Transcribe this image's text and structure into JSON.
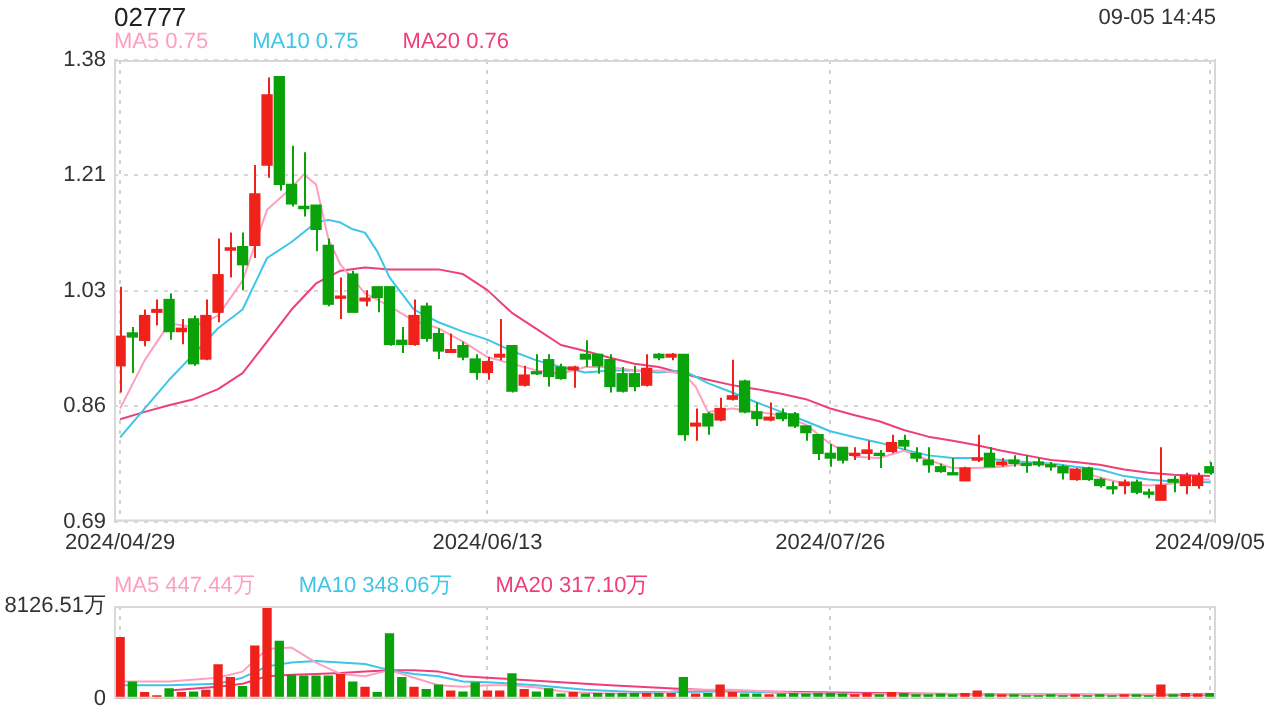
{
  "chart_data": [
    {
      "type": "candlestick",
      "title": "02777",
      "annotations": [
        "09-05 14:45"
      ],
      "legend": "top left",
      "grid": true,
      "categories": [
        "2024/04/29",
        null,
        null,
        null,
        null,
        null,
        null,
        null,
        null,
        null,
        null,
        null,
        null,
        null,
        null,
        null,
        null,
        null,
        null,
        null,
        null,
        null,
        null,
        null,
        null,
        null,
        null,
        null,
        null,
        null,
        "2024/06/13",
        null,
        null,
        null,
        null,
        null,
        null,
        null,
        null,
        null,
        null,
        null,
        null,
        null,
        null,
        null,
        null,
        null,
        null,
        null,
        null,
        null,
        null,
        null,
        null,
        null,
        null,
        null,
        "2024/07/26",
        null,
        null,
        null,
        null,
        null,
        null,
        null,
        null,
        null,
        null,
        null,
        null,
        null,
        null,
        null,
        null,
        null,
        null,
        null,
        null,
        null,
        null,
        null,
        null,
        null,
        null,
        null,
        null,
        null,
        null,
        "2024/09/05"
      ],
      "ylim": [
        0.69,
        1.38
      ],
      "yticks": [
        {
          "value": 0.69,
          "label": "0.69"
        },
        {
          "value": 0.8625,
          "label": "0.86"
        },
        {
          "value": 1.035,
          "label": "1.03"
        },
        {
          "value": 1.2075,
          "label": "1.21"
        },
        {
          "value": 1.38,
          "label": "1.38"
        }
      ],
      "ohlc": [
        [
          0.923,
          1.041,
          0.883,
          0.967
        ],
        [
          0.972,
          0.981,
          0.912,
          0.966
        ],
        [
          0.961,
          1.007,
          0.952,
          0.998
        ],
        [
          1.003,
          1.022,
          0.983,
          1.007
        ],
        [
          1.022,
          1.031,
          0.962,
          0.974
        ],
        [
          0.974,
          0.993,
          0.955,
          0.979
        ],
        [
          0.993,
          0.998,
          0.923,
          0.926
        ],
        [
          0.933,
          1.022,
          0.931,
          0.998
        ],
        [
          1.003,
          1.113,
          0.988,
          1.059
        ],
        [
          1.096,
          1.122,
          1.055,
          1.098
        ],
        [
          1.101,
          1.122,
          1.036,
          1.074
        ],
        [
          1.103,
          1.223,
          1.084,
          1.18
        ],
        [
          1.223,
          1.354,
          1.204,
          1.328
        ],
        [
          1.355,
          1.355,
          1.185,
          1.194
        ],
        [
          1.194,
          1.252,
          1.161,
          1.165
        ],
        [
          1.161,
          1.242,
          1.146,
          1.158
        ],
        [
          1.163,
          1.163,
          1.094,
          1.127
        ],
        [
          1.103,
          1.113,
          1.012,
          1.015
        ],
        [
          1.024,
          1.055,
          0.993,
          1.027
        ],
        [
          1.06,
          1.065,
          1.003,
          1.003
        ],
        [
          1.02,
          1.036,
          1.012,
          1.024
        ],
        [
          1.041,
          1.041,
          1.003,
          1.025
        ],
        [
          1.041,
          1.041,
          0.953,
          0.955
        ],
        [
          0.961,
          0.981,
          0.942,
          0.955
        ],
        [
          0.955,
          1.022,
          0.953,
          0.998
        ],
        [
          1.012,
          1.017,
          0.959,
          0.964
        ],
        [
          0.971,
          0.979,
          0.933,
          0.945
        ],
        [
          0.943,
          0.971,
          0.942,
          0.947
        ],
        [
          0.953,
          0.959,
          0.931,
          0.936
        ],
        [
          0.933,
          0.94,
          0.902,
          0.913
        ],
        [
          0.913,
          0.936,
          0.902,
          0.929
        ],
        [
          0.936,
          0.993,
          0.931,
          0.94
        ],
        [
          0.953,
          0.953,
          0.883,
          0.885
        ],
        [
          0.894,
          0.923,
          0.892,
          0.909
        ],
        [
          0.913,
          0.94,
          0.909,
          0.911
        ],
        [
          0.932,
          0.94,
          0.892,
          0.907
        ],
        [
          0.921,
          0.926,
          0.902,
          0.904
        ],
        [
          0.917,
          0.923,
          0.89,
          0.921
        ],
        [
          0.94,
          0.961,
          0.921,
          0.933
        ],
        [
          0.94,
          0.94,
          0.911,
          0.923
        ],
        [
          0.932,
          0.94,
          0.883,
          0.892
        ],
        [
          0.911,
          0.921,
          0.883,
          0.885
        ],
        [
          0.911,
          0.923,
          0.885,
          0.892
        ],
        [
          0.894,
          0.94,
          0.892,
          0.919
        ],
        [
          0.94,
          0.942,
          0.931,
          0.935
        ],
        [
          0.936,
          0.942,
          0.931,
          0.94
        ],
        [
          0.94,
          0.94,
          0.811,
          0.82
        ],
        [
          0.833,
          0.859,
          0.811,
          0.837
        ],
        [
          0.851,
          0.854,
          0.82,
          0.833
        ],
        [
          0.842,
          0.875,
          0.84,
          0.859
        ],
        [
          0.873,
          0.932,
          0.871,
          0.878
        ],
        [
          0.9,
          0.902,
          0.852,
          0.854
        ],
        [
          0.854,
          0.868,
          0.833,
          0.844
        ],
        [
          0.842,
          0.868,
          0.84,
          0.846
        ],
        [
          0.852,
          0.859,
          0.84,
          0.844
        ],
        [
          0.851,
          0.854,
          0.83,
          0.833
        ],
        [
          0.833,
          0.833,
          0.811,
          0.823
        ],
        [
          0.82,
          0.82,
          0.782,
          0.792
        ],
        [
          0.792,
          0.806,
          0.772,
          0.785
        ],
        [
          0.801,
          0.801,
          0.777,
          0.782
        ],
        [
          0.789,
          0.801,
          0.782,
          0.792
        ],
        [
          0.792,
          0.811,
          0.782,
          0.797
        ],
        [
          0.792,
          0.797,
          0.77,
          0.789
        ],
        [
          0.795,
          0.82,
          0.792,
          0.808
        ],
        [
          0.811,
          0.82,
          0.797,
          0.803
        ],
        [
          0.792,
          0.801,
          0.779,
          0.785
        ],
        [
          0.782,
          0.801,
          0.763,
          0.775
        ],
        [
          0.772,
          0.777,
          0.763,
          0.765
        ],
        [
          0.763,
          0.785,
          0.76,
          0.76
        ],
        [
          0.751,
          0.772,
          0.751,
          0.77
        ],
        [
          0.782,
          0.82,
          0.779,
          0.785
        ],
        [
          0.792,
          0.801,
          0.772,
          0.772
        ],
        [
          0.775,
          0.785,
          0.772,
          0.779
        ],
        [
          0.782,
          0.789,
          0.772,
          0.777
        ],
        [
          0.777,
          0.789,
          0.763,
          0.774
        ],
        [
          0.779,
          0.785,
          0.772,
          0.775
        ],
        [
          0.775,
          0.779,
          0.766,
          0.772
        ],
        [
          0.772,
          0.775,
          0.753,
          0.763
        ],
        [
          0.753,
          0.77,
          0.751,
          0.768
        ],
        [
          0.77,
          0.772,
          0.751,
          0.753
        ],
        [
          0.753,
          0.756,
          0.741,
          0.744
        ],
        [
          0.741,
          0.75,
          0.731,
          0.739
        ],
        [
          0.744,
          0.753,
          0.731,
          0.749
        ],
        [
          0.749,
          0.753,
          0.731,
          0.734
        ],
        [
          0.734,
          0.739,
          0.725,
          0.731
        ],
        [
          0.722,
          0.801,
          0.722,
          0.744
        ],
        [
          0.753,
          0.758,
          0.734,
          0.749
        ],
        [
          0.744,
          0.763,
          0.731,
          0.758
        ],
        [
          0.744,
          0.763,
          0.739,
          0.758
        ],
        [
          0.772,
          0.779,
          0.76,
          0.763
        ]
      ],
      "colors": [
        "#f0201a",
        "#0aa20a",
        "#f0201a",
        "#f0201a",
        "#0aa20a",
        "#f0201a",
        "#0aa20a",
        "#f0201a",
        "#f0201a",
        "#f0201a",
        "#0aa20a",
        "#f0201a",
        "#f0201a",
        "#0aa20a",
        "#0aa20a",
        "#0aa20a",
        "#0aa20a",
        "#0aa20a",
        "#f0201a",
        "#0aa20a",
        "#f0201a",
        "#0aa20a",
        "#0aa20a",
        "#0aa20a",
        "#f0201a",
        "#0aa20a",
        "#0aa20a",
        "#f0201a",
        "#0aa20a",
        "#0aa20a",
        "#f0201a",
        "#f0201a",
        "#0aa20a",
        "#f0201a",
        "#0aa20a",
        "#0aa20a",
        "#0aa20a",
        "#f0201a",
        "#0aa20a",
        "#0aa20a",
        "#0aa20a",
        "#0aa20a",
        "#0aa20a",
        "#f0201a",
        "#0aa20a",
        "#f0201a",
        "#0aa20a",
        "#f0201a",
        "#0aa20a",
        "#f0201a",
        "#f0201a",
        "#0aa20a",
        "#0aa20a",
        "#f0201a",
        "#0aa20a",
        "#0aa20a",
        "#0aa20a",
        "#0aa20a",
        "#0aa20a",
        "#0aa20a",
        "#f0201a",
        "#f0201a",
        "#0aa20a",
        "#f0201a",
        "#0aa20a",
        "#0aa20a",
        "#0aa20a",
        "#0aa20a",
        "#0aa20a",
        "#f0201a",
        "#f0201a",
        "#0aa20a",
        "#f0201a",
        "#0aa20a",
        "#0aa20a",
        "#0aa20a",
        "#0aa20a",
        "#0aa20a",
        "#f0201a",
        "#0aa20a",
        "#0aa20a",
        "#0aa20a",
        "#f0201a",
        "#0aa20a",
        "#0aa20a",
        "#f0201a",
        "#0aa20a",
        "#f0201a",
        "#f0201a",
        "#0aa20a"
      ],
      "series": [
        {
          "type": "line",
          "name": "MA5 0.75",
          "color": "#ff9fbf",
          "values": [
            0.859,
            null,
            0.931,
            null,
            0.986,
            null,
            0.981,
            null,
            0.998,
            null,
            1.05,
            null,
            1.156,
            null,
            1.189,
            1.209,
            1.194,
            1.113,
            1.074,
            null,
            1.031,
            null,
            1.012,
            null,
            0.99,
            null,
            0.979,
            null,
            0.959,
            null,
            0.936,
            null,
            0.926,
            null,
            0.916,
            null,
            0.911,
            null,
            0.921,
            null,
            0.921,
            null,
            0.916,
            null,
            0.916,
            null,
            0.911,
            0.892,
            0.854,
            null,
            0.859,
            null,
            0.854,
            null,
            0.849,
            null,
            0.835,
            null,
            0.806,
            null,
            0.787,
            null,
            0.785,
            null,
            0.796,
            null,
            0.782,
            null,
            0.77,
            null,
            0.77,
            null,
            0.772,
            null,
            0.777,
            null,
            0.775,
            null,
            0.768,
            null,
            0.756,
            null,
            0.747,
            null,
            0.744,
            null,
            0.747,
            null,
            0.753,
            0.753
          ]
        },
        {
          "type": "line",
          "name": "MA10 0.75",
          "color": "#3ec6e8",
          "values": [
            0.816,
            null,
            0.859,
            null,
            0.902,
            null,
            0.94,
            null,
            0.979,
            null,
            1.007,
            null,
            1.084,
            null,
            1.108,
            null,
            1.137,
            1.141,
            1.137,
            1.127,
            1.122,
            1.094,
            1.055,
            null,
            1.007,
            null,
            0.988,
            null,
            0.974,
            null,
            0.962,
            null,
            0.945,
            null,
            0.931,
            null,
            0.921,
            null,
            0.913,
            null,
            0.916,
            null,
            0.916,
            null,
            0.913,
            null,
            0.916,
            null,
            0.897,
            null,
            0.883,
            null,
            0.868,
            null,
            0.854,
            null,
            0.84,
            null,
            0.825,
            null,
            0.816,
            null,
            0.808,
            null,
            0.798,
            null,
            0.789,
            null,
            0.785,
            null,
            0.785,
            null,
            0.782,
            null,
            0.779,
            null,
            0.777,
            null,
            0.772,
            null,
            0.768,
            null,
            0.758,
            null,
            0.753,
            null,
            0.75,
            null,
            null,
            0.749
          ]
        },
        {
          "type": "line",
          "name": "MA20 0.76",
          "color": "#ee3f7a",
          "values": [
            0.843,
            null,
            0.854,
            null,
            0.864,
            null,
            0.873,
            null,
            0.888,
            null,
            0.912,
            null,
            0.959,
            null,
            1.007,
            null,
            1.046,
            null,
            1.065,
            null,
            1.07,
            null,
            1.067,
            null,
            1.067,
            null,
            1.067,
            null,
            1.06,
            null,
            1.036,
            null,
            1.002,
            null,
            0.978,
            null,
            0.954,
            null,
            0.945,
            null,
            0.935,
            null,
            0.926,
            null,
            0.921,
            null,
            0.911,
            null,
            0.902,
            null,
            0.894,
            null,
            0.888,
            null,
            0.881,
            null,
            0.873,
            null,
            0.859,
            null,
            0.849,
            null,
            0.84,
            null,
            0.827,
            null,
            0.817,
            null,
            0.811,
            null,
            0.804,
            null,
            0.796,
            null,
            0.789,
            null,
            0.782,
            null,
            0.779,
            null,
            0.775,
            null,
            0.768,
            null,
            0.763,
            null,
            0.76,
            null,
            null,
            0.758
          ]
        }
      ]
    },
    {
      "type": "bar",
      "legend": "top left",
      "grid": "x",
      "tick_labels": "y",
      "categories": [
        "2024/04/29",
        null,
        null,
        null,
        null,
        null,
        null,
        null,
        null,
        null,
        null,
        null,
        null,
        null,
        null,
        null,
        null,
        null,
        null,
        null,
        null,
        null,
        null,
        null,
        null,
        null,
        null,
        null,
        null,
        null,
        "2024/06/13",
        null,
        null,
        null,
        null,
        null,
        null,
        null,
        null,
        null,
        null,
        null,
        null,
        null,
        null,
        null,
        null,
        null,
        null,
        null,
        null,
        null,
        null,
        null,
        null,
        null,
        null,
        null,
        "2024/07/26",
        null,
        null,
        null,
        null,
        null,
        null,
        null,
        null,
        null,
        null,
        null,
        null,
        null,
        null,
        null,
        null,
        null,
        null,
        null,
        null,
        null,
        null,
        null,
        null,
        null,
        null,
        null,
        null,
        null,
        null,
        "2024/09/05"
      ],
      "ylim": [
        0,
        8126.51
      ],
      "yticks": [
        0,
        {
          "value": 8126.51,
          "label": "8126.51万"
        }
      ],
      "series": [
        {
          "colors": [
            "#f0201a",
            "#0aa20a",
            "#f0201a",
            "#f0201a",
            "#0aa20a",
            "#f0201a",
            "#0aa20a",
            "#f0201a",
            "#f0201a",
            "#f0201a",
            "#0aa20a",
            "#f0201a",
            "#f0201a",
            "#0aa20a",
            "#0aa20a",
            "#0aa20a",
            "#0aa20a",
            "#0aa20a",
            "#f0201a",
            "#0aa20a",
            "#f0201a",
            "#0aa20a",
            "#0aa20a",
            "#0aa20a",
            "#f0201a",
            "#0aa20a",
            "#0aa20a",
            "#f0201a",
            "#0aa20a",
            "#0aa20a",
            "#f0201a",
            "#f0201a",
            "#0aa20a",
            "#f0201a",
            "#0aa20a",
            "#0aa20a",
            "#0aa20a",
            "#f0201a",
            "#0aa20a",
            "#0aa20a",
            "#0aa20a",
            "#0aa20a",
            "#0aa20a",
            "#f0201a",
            "#0aa20a",
            "#f0201a",
            "#0aa20a",
            "#f0201a",
            "#0aa20a",
            "#f0201a",
            "#f0201a",
            "#0aa20a",
            "#0aa20a",
            "#f0201a",
            "#0aa20a",
            "#0aa20a",
            "#0aa20a",
            "#0aa20a",
            "#0aa20a",
            "#0aa20a",
            "#f0201a",
            "#f0201a",
            "#0aa20a",
            "#f0201a",
            "#0aa20a",
            "#0aa20a",
            "#0aa20a",
            "#0aa20a",
            "#0aa20a",
            "#f0201a",
            "#f0201a",
            "#0aa20a",
            "#f0201a",
            "#0aa20a",
            "#0aa20a",
            "#0aa20a",
            "#0aa20a",
            "#0aa20a",
            "#f0201a",
            "#0aa20a",
            "#0aa20a",
            "#0aa20a",
            "#f0201a",
            "#0aa20a",
            "#0aa20a",
            "#f0201a",
            "#0aa20a",
            "#f0201a",
            "#f0201a",
            "#0aa20a"
          ],
          "values": [
            5350,
            1450,
            530,
            260,
            860,
            530,
            590,
            730,
            2970,
            1850,
            1060,
            4620,
            8126.51,
            5020,
            2050,
            1980,
            1980,
            1980,
            2110,
            1450,
            990,
            530,
            5680,
            1850,
            990,
            790,
            1190,
            660,
            590,
            1390,
            660,
            660,
            2180,
            790,
            590,
            860,
            400,
            530,
            400,
            460,
            460,
            460,
            460,
            460,
            460,
            460,
            1850,
            400,
            460,
            1190,
            530,
            400,
            400,
            330,
            400,
            460,
            400,
            460,
            460,
            400,
            330,
            460,
            330,
            530,
            460,
            330,
            330,
            400,
            330,
            460,
            660,
            400,
            330,
            330,
            260,
            260,
            330,
            260,
            330,
            260,
            330,
            260,
            330,
            330,
            260,
            1190,
            330,
            460,
            400,
            460
          ]
        },
        {
          "type": "line",
          "name": "MA5 447.44万",
          "color": "#ff9fbf",
          "values": [
            1520,
            null,
            null,
            null,
            1520,
            null,
            null,
            null,
            1850,
            null,
            2380,
            null,
            4360,
            null,
            4490,
            null,
            3170,
            null,
            2180,
            null,
            1980,
            null,
            2510,
            null,
            1850,
            null,
            1190,
            null,
            1060,
            null,
            1190,
            null,
            1190,
            null,
            990,
            null,
            660,
            null,
            530,
            null,
            460,
            null,
            null,
            null,
            460,
            null,
            790,
            null,
            null,
            null,
            790,
            null,
            null,
            null,
            null,
            530,
            null,
            null,
            null,
            null,
            400,
            null,
            null,
            null,
            null,
            null,
            null,
            null,
            null,
            null,
            400,
            null,
            null,
            null,
            null,
            null,
            null,
            null,
            null,
            null,
            330,
            null,
            null,
            null,
            null,
            null,
            null,
            null,
            null,
            450
          ]
        },
        {
          "type": "line",
          "name": "MA10 348.06万",
          "color": "#3ec6e8",
          "values": [
            1190,
            null,
            null,
            null,
            1190,
            null,
            null,
            null,
            1320,
            null,
            1850,
            null,
            2840,
            null,
            3170,
            null,
            3300,
            null,
            3170,
            null,
            3040,
            null,
            2510,
            null,
            2180,
            null,
            1980,
            null,
            1520,
            null,
            1450,
            null,
            null,
            null,
            1190,
            null,
            null,
            null,
            790,
            null,
            null,
            null,
            600,
            null,
            null,
            null,
            600,
            null,
            null,
            null,
            660,
            null,
            null,
            null,
            null,
            null,
            460,
            null,
            null,
            null,
            null,
            null,
            null,
            null,
            400,
            null,
            null,
            null,
            null,
            null,
            null,
            null,
            null,
            null,
            null,
            null,
            null,
            null,
            null,
            null,
            null,
            null,
            null,
            null,
            null,
            null,
            null,
            null,
            null,
            350
          ]
        },
        {
          "type": "line",
          "name": "MA20 317.10万",
          "color": "#ee3f7a",
          "values": [
            null,
            null,
            null,
            null,
            730,
            null,
            null,
            null,
            1060,
            null,
            1320,
            null,
            1980,
            null,
            2110,
            null,
            2180,
            null,
            2250,
            null,
            2380,
            null,
            2510,
            null,
            2510,
            null,
            2380,
            null,
            1980,
            null,
            1850,
            null,
            1720,
            null,
            null,
            null,
            1450,
            null,
            null,
            null,
            1190,
            null,
            null,
            null,
            null,
            null,
            860,
            null,
            null,
            null,
            660,
            null,
            null,
            null,
            null,
            null,
            null,
            null,
            null,
            null,
            530,
            null,
            null,
            null,
            null,
            null,
            null,
            null,
            null,
            null,
            400,
            null,
            null,
            null,
            null,
            null,
            null,
            null,
            null,
            null,
            null,
            null,
            null,
            null,
            null,
            null,
            null,
            null,
            null,
            320
          ]
        }
      ]
    }
  ]
}
